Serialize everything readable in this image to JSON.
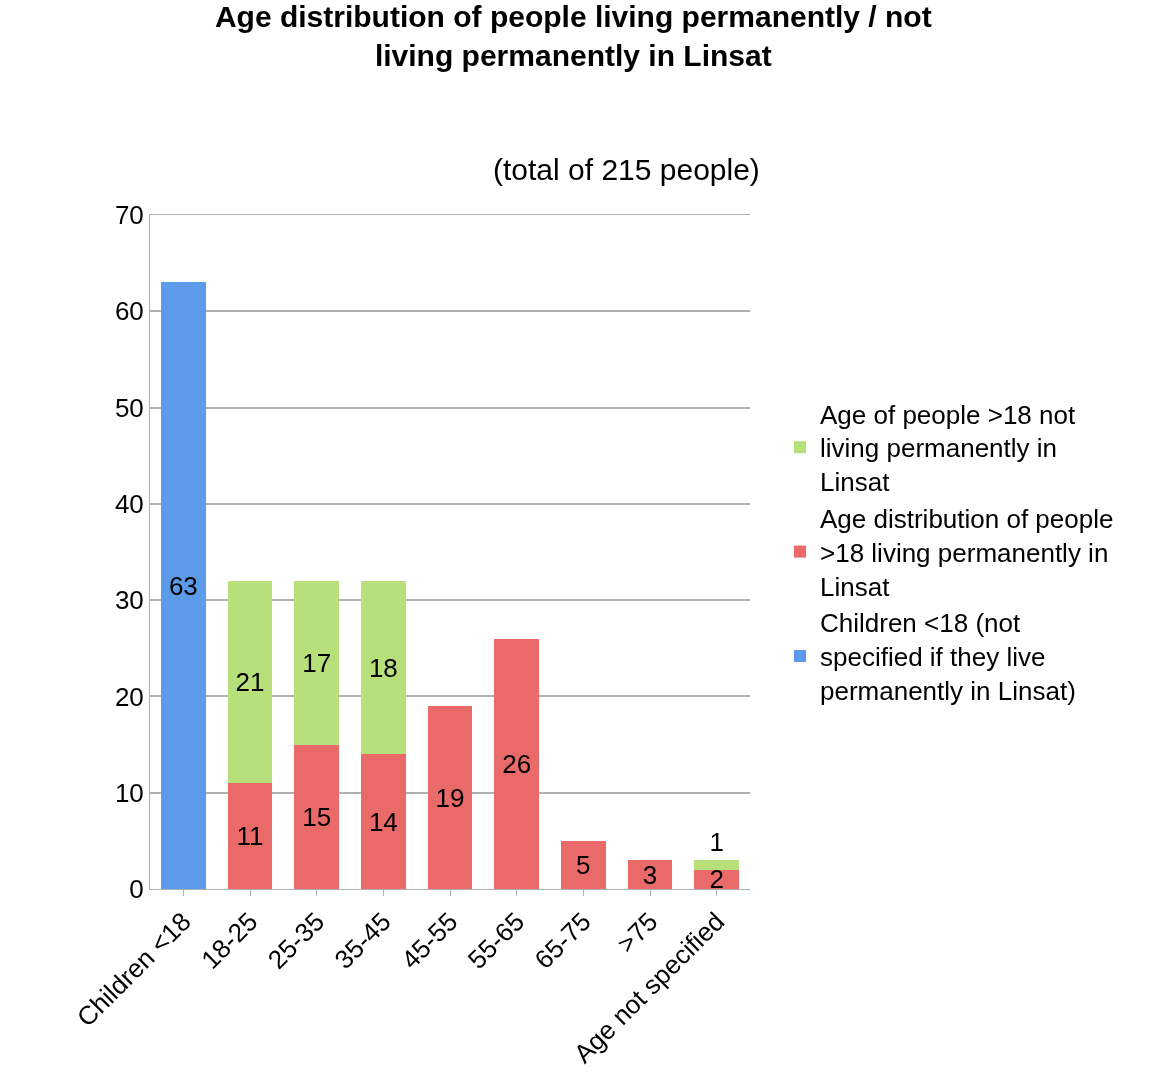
{
  "chart_data": {
    "type": "bar",
    "title": "Age distribution of people living permanently / not living permanently in Linsat",
    "subtitle": "(total of 215 people)",
    "categories": [
      "Children <18",
      "18-25",
      "25-35",
      "35-45",
      "45-55",
      "55-65",
      "65-75",
      ">75",
      "Age not specified"
    ],
    "stacked": true,
    "data_labels": true,
    "grid": "y",
    "legend": "right",
    "ylim": [
      0,
      70
    ],
    "yticks": [
      0,
      10,
      20,
      30,
      40,
      50,
      60,
      70
    ],
    "series": [
      {
        "name": "Children <18 (not specified if they live permanently in Linsat)",
        "color": "#5b9bea",
        "values": [
          63,
          null,
          null,
          null,
          null,
          null,
          null,
          null,
          null
        ]
      },
      {
        "name": "Age distribution of people >18 living permanently in Linsat",
        "color": "#e96a68",
        "values": [
          null,
          11,
          15,
          14,
          19,
          26,
          5,
          3,
          2
        ]
      },
      {
        "name": "Age of people >18 not living permanently in Linsat",
        "color": "#b7e07a",
        "values": [
          null,
          21,
          17,
          18,
          null,
          null,
          null,
          null,
          1
        ]
      }
    ]
  }
}
